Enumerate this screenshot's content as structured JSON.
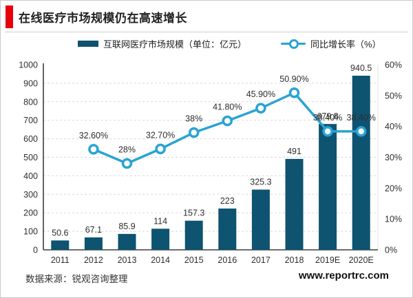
{
  "title": "在线医疗市场规模仍在高速增长",
  "accent_color": "#e8000d",
  "colors": {
    "bar": "#0e5370",
    "line": "#29a3d4",
    "grid": "#d8d8d8",
    "axis": "#3d3d3d",
    "text": "#2e2e2e"
  },
  "legend": [
    {
      "label": "互联网医疗市场规模（单位：亿元）",
      "type": "bar",
      "color": "#0e5370"
    },
    {
      "label": "同比增长率（%）",
      "type": "line",
      "color": "#29a3d4"
    }
  ],
  "footer": {
    "source": "数据来源：锐观咨询整理",
    "website": "www.reportrc.com"
  },
  "chart_data": {
    "type": "bar",
    "subtype": "bar+line combo, dual axis",
    "categories": [
      "2011",
      "2012",
      "2013",
      "2014",
      "2015",
      "2016",
      "2017",
      "2018",
      "2019E",
      "2020E"
    ],
    "series": [
      {
        "name": "互联网医疗市场规模（单位：亿元）",
        "type": "bar",
        "axis": "left",
        "color": "#0e5370",
        "values": [
          50.6,
          67.1,
          85.9,
          114,
          157.3,
          223,
          325.3,
          491,
          679.8,
          940.5
        ],
        "labels": [
          "50.6",
          "67.1",
          "85.9",
          "114",
          "157.3",
          "223",
          "325.3",
          "491",
          "679.8",
          "940.5"
        ]
      },
      {
        "name": "同比增长率（%）",
        "type": "line",
        "axis": "right",
        "color": "#29a3d4",
        "start_index": 1,
        "values": [
          32.6,
          28,
          32.7,
          38,
          41.8,
          45.9,
          50.9,
          38.4,
          38.4
        ],
        "labels": [
          "32.60%",
          "28%",
          "32.70%",
          "38%",
          "41.80%",
          "45.90%",
          "50.90%",
          "38.40%",
          "38.40%"
        ]
      }
    ],
    "left_axis": {
      "min": 0,
      "max": 1000,
      "step": 100,
      "ticks": [
        "0",
        "100",
        "200",
        "300",
        "400",
        "500",
        "600",
        "700",
        "800",
        "900",
        "1000"
      ]
    },
    "right_axis": {
      "min": 0,
      "max": 60,
      "step": 10,
      "ticks": [
        "0%",
        "10%",
        "20%",
        "30%",
        "40%",
        "50%",
        "60%"
      ]
    },
    "grid": "dashed horizontal gridlines at left-axis steps",
    "legend_position": "top"
  }
}
